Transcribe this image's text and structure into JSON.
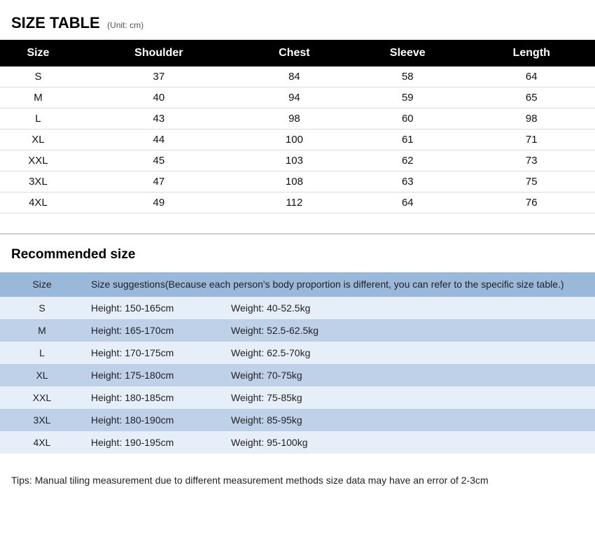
{
  "title": {
    "main": "SIZE TABLE",
    "unit": "(Unit: cm)"
  },
  "sizeTable": {
    "columns": [
      "Size",
      "Shoulder",
      "Chest",
      "Sleeve",
      "Length"
    ],
    "rows": [
      [
        "S",
        "37",
        "84",
        "58",
        "64"
      ],
      [
        "M",
        "40",
        "94",
        "59",
        "65"
      ],
      [
        "L",
        "43",
        "98",
        "60",
        "98"
      ],
      [
        "XL",
        "44",
        "100",
        "61",
        "71"
      ],
      [
        "XXL",
        "45",
        "103",
        "62",
        "73"
      ],
      [
        "3XL",
        "47",
        "108",
        "63",
        "75"
      ],
      [
        "4XL",
        "49",
        "112",
        "64",
        "76"
      ]
    ],
    "header_bg": "#000000",
    "header_fg": "#ffffff",
    "row_border": "#dcdcdc"
  },
  "recommended": {
    "title": "Recommended size",
    "header_size_label": "Size",
    "header_suggestion": "Size suggestions(Because each person's body proportion is different, you can refer to the specific size table.)",
    "rows": [
      {
        "size": "S",
        "height": "Height: 150-165cm",
        "weight": "Weight: 40-52.5kg"
      },
      {
        "size": "M",
        "height": "Height: 165-170cm",
        "weight": "Weight: 52.5-62.5kg"
      },
      {
        "size": "L",
        "height": "Height: 170-175cm",
        "weight": "Weight: 62.5-70kg"
      },
      {
        "size": "XL",
        "height": "Height: 175-180cm",
        "weight": "Weight: 70-75kg"
      },
      {
        "size": "XXL",
        "height": "Height: 180-185cm",
        "weight": "Weight: 75-85kg"
      },
      {
        "size": "3XL",
        "height": "Height: 180-190cm",
        "weight": "Weight: 85-95kg"
      },
      {
        "size": "4XL",
        "height": "Height: 190-195cm",
        "weight": "Weight: 95-100kg"
      }
    ],
    "header_bg": "#9ab8d9",
    "row_even_bg": "#e6eef8",
    "row_odd_bg": "#bed1e8"
  },
  "tips": "Tips: Manual tiling measurement due to different measurement methods size data may have an error of 2-3cm"
}
